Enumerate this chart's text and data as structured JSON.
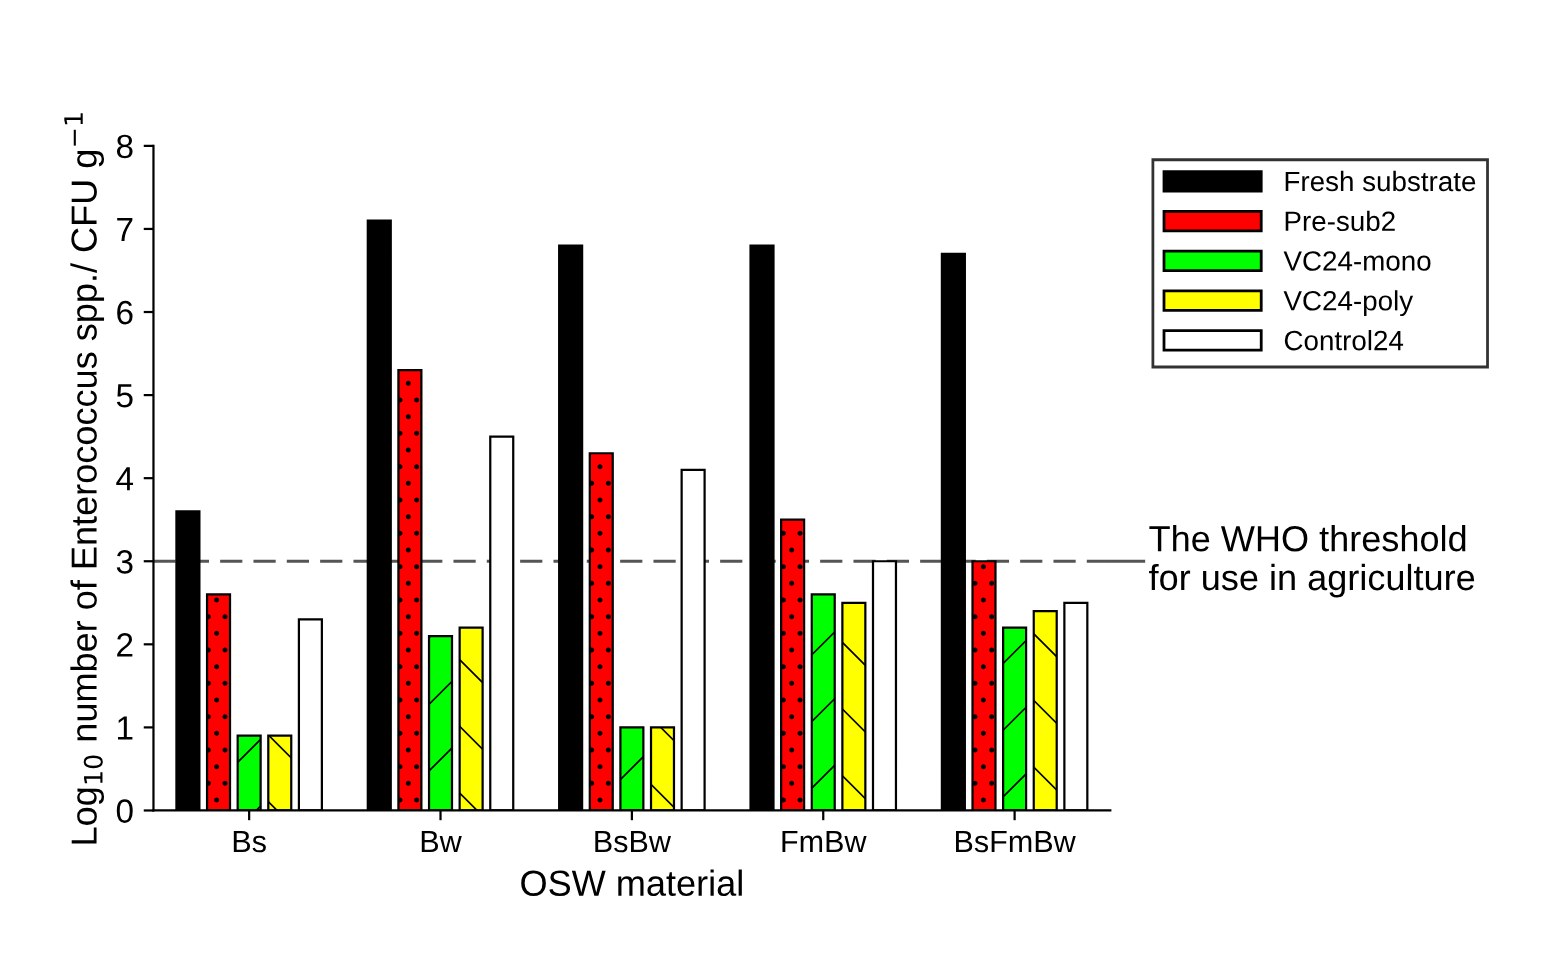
{
  "chart_data": {
    "type": "bar",
    "xlabel": "OSW material",
    "ylabel": "Log$_{10}$ number of Enterococcus spp./ CFU g$^{−1}$",
    "categories": [
      "Bs",
      "Bw",
      "BsBw",
      "FmBw",
      "BsFmBw"
    ],
    "series": [
      {
        "name": "Fresh substrate",
        "color": "#000000",
        "values": [
          3.6,
          7.1,
          6.8,
          6.8,
          6.7
        ]
      },
      {
        "name": "Pre-sub2",
        "color": "#ff0000",
        "values": [
          2.6,
          5.3,
          4.3,
          3.5,
          3.0
        ]
      },
      {
        "name": "VC24-mono",
        "color": "#00ff00",
        "values": [
          0.9,
          2.1,
          1.0,
          2.6,
          2.2
        ]
      },
      {
        "name": "VC24-poly",
        "color": "#ffff00",
        "values": [
          0.9,
          2.2,
          1.0,
          2.5,
          2.4
        ]
      },
      {
        "name": "Control24",
        "color": "#ffffff",
        "values": [
          2.3,
          4.5,
          4.1,
          3.0,
          2.5
        ]
      }
    ],
    "ylim": [
      0,
      8
    ],
    "yticks": [
      0,
      1,
      2,
      3,
      4,
      5,
      6,
      7,
      8
    ],
    "ref_lines": [
      {
        "axis": "y",
        "value": 3,
        "label": "The WHO threshold\nfor use in agriculture",
        "color": "#555555",
        "line_style": "dashed"
      }
    ],
    "grid": false,
    "legend": "top right"
  }
}
